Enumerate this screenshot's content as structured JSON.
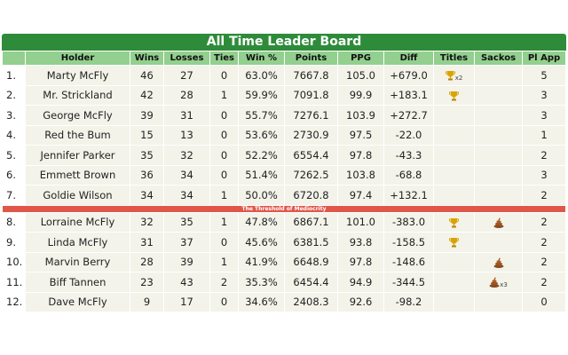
{
  "table": {
    "title": "All Time Leader Board",
    "columns": [
      "Holder",
      "Wins",
      "Losses",
      "Ties",
      "Win %",
      "Points",
      "PPG",
      "Diff",
      "Titles",
      "Sackos",
      "Pl App"
    ],
    "upper_rows": [
      [
        "1.",
        "Marty McFly",
        46,
        27,
        0,
        "63.0%",
        "7667.8",
        "105.0",
        "+679.0",
        {
          "count": 2,
          "label": "x2"
        },
        null,
        5
      ],
      [
        "2.",
        "Mr. Strickland",
        42,
        28,
        1,
        "59.9%",
        "7091.8",
        "99.9",
        "+183.1",
        {
          "count": 1
        },
        null,
        3
      ],
      [
        "3.",
        "George McFly",
        39,
        31,
        0,
        "55.7%",
        "7276.1",
        "103.9",
        "+272.7",
        null,
        null,
        3
      ],
      [
        "4.",
        "Red the Bum",
        15,
        13,
        0,
        "53.6%",
        "2730.9",
        "97.5",
        "-22.0",
        null,
        null,
        1
      ],
      [
        "5.",
        "Jennifer Parker",
        35,
        32,
        0,
        "52.2%",
        "6554.4",
        "97.8",
        "-43.3",
        null,
        null,
        2
      ],
      [
        "6.",
        "Emmett Brown",
        36,
        34,
        0,
        "51.4%",
        "7262.5",
        "103.8",
        "-68.8",
        null,
        null,
        3
      ],
      [
        "7.",
        "Goldie Wilson",
        34,
        34,
        1,
        "50.0%",
        "6720.8",
        "97.4",
        "+132.1",
        null,
        null,
        2
      ]
    ],
    "divider": "The Threshold of Mediocrity",
    "lower_rows": [
      [
        "8.",
        "Lorraine McFly",
        32,
        35,
        1,
        "47.8%",
        "6867.1",
        "101.0",
        "-383.0",
        {
          "count": 1
        },
        {
          "count": 1
        },
        2
      ],
      [
        "9.",
        "Linda McFly",
        31,
        37,
        0,
        "45.6%",
        "6381.5",
        "93.8",
        "-158.5",
        {
          "count": 1
        },
        null,
        2
      ],
      [
        "10.",
        "Marvin Berry",
        28,
        39,
        1,
        "41.9%",
        "6648.9",
        "97.8",
        "-148.6",
        null,
        {
          "count": 1
        },
        2
      ],
      [
        "11.",
        "Biff Tannen",
        23,
        43,
        2,
        "35.3%",
        "6454.4",
        "94.9",
        "-344.5",
        null,
        {
          "count": 3,
          "label": "x3"
        },
        2
      ],
      [
        "12.",
        "Dave McFly",
        9,
        17,
        0,
        "34.6%",
        "2408.3",
        "92.6",
        "-98.2",
        null,
        null,
        0
      ]
    ]
  }
}
